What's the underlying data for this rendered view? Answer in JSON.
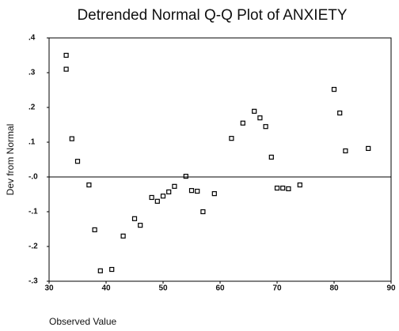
{
  "chart_data": {
    "type": "scatter",
    "title": "Detrended Normal Q-Q Plot of ANXIETY",
    "x_label": "Observed Value",
    "y_label": "Dev from Normal",
    "x": [
      33,
      33,
      34,
      35,
      37,
      38,
      39,
      41,
      43,
      45,
      46,
      48,
      49,
      50,
      51,
      52,
      54,
      55,
      56,
      57,
      59,
      62,
      64,
      66,
      67,
      68,
      69,
      70,
      71,
      72,
      74,
      80,
      81,
      82,
      86
    ],
    "values": [
      0.35,
      0.31,
      0.11,
      0.045,
      -0.023,
      -0.152,
      -0.27,
      -0.266,
      -0.17,
      -0.12,
      -0.139,
      -0.059,
      -0.07,
      -0.055,
      -0.043,
      -0.027,
      0.002,
      -0.039,
      -0.041,
      -0.1,
      -0.048,
      0.111,
      0.155,
      0.189,
      0.17,
      0.145,
      0.057,
      -0.032,
      -0.032,
      -0.034,
      -0.023,
      0.252,
      0.184,
      0.075,
      0.082
    ],
    "color": "#000000",
    "xlim": [
      30,
      90
    ],
    "xticks": [
      30,
      40,
      50,
      60,
      70,
      80,
      90
    ],
    "ylim": [
      -0.3,
      0.4
    ],
    "yticks": [
      {
        "value": 0.4,
        "label": ".4"
      },
      {
        "value": 0.3,
        "label": ".3"
      },
      {
        "value": 0.2,
        "label": ".2"
      },
      {
        "value": 0.1,
        "label": ".1"
      },
      {
        "value": 0,
        "label": "-.0"
      },
      {
        "value": -0.1,
        "label": "-.1"
      },
      {
        "value": -0.2,
        "label": "-.2"
      },
      {
        "value": -0.3,
        "label": "-.3"
      }
    ],
    "reference_line": 0
  }
}
